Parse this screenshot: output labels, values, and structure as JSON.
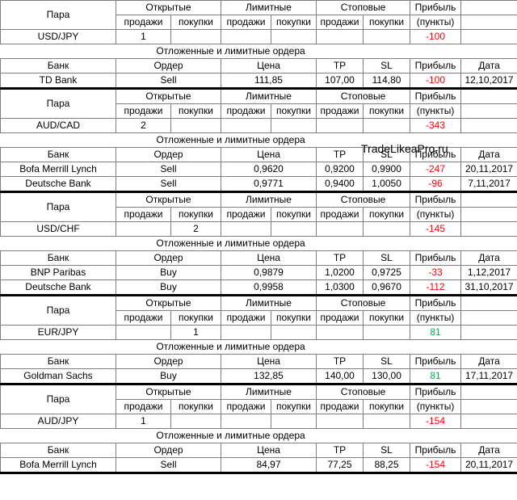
{
  "headers": {
    "pair": "Пара",
    "open": "Открытые",
    "limit": "Лимитные",
    "stop": "Стоповые",
    "profit": "Прибыль",
    "sell": "продажи",
    "buy": "покупки",
    "points": "(пункты)",
    "pending": "Отложенные и лимитные ордера",
    "bank": "Банк",
    "order": "Ордер",
    "price": "Цена",
    "tp": "TP",
    "sl": "SL",
    "date": "Дата"
  },
  "watermark": "TradeLikeaPro.ru",
  "blocks": [
    {
      "pair": "USD/JPY",
      "open_sell": 1,
      "open_buy": null,
      "profit": -100,
      "profit_color": "#ff0000",
      "orders": [
        {
          "bank": "TD Bank",
          "order": "Sell",
          "price": "111,85",
          "tp": "107,00",
          "sl": "114,80",
          "profit": -100,
          "profit_color": "#ff0000",
          "date": "12,10,2017"
        }
      ]
    },
    {
      "pair": "AUD/CAD",
      "open_sell": 2,
      "open_buy": null,
      "profit": -343,
      "profit_color": "#ff0000",
      "orders": [
        {
          "bank": "Bofa Merrill Lynch",
          "order": "Sell",
          "price": "0,9620",
          "tp": "0,9200",
          "sl": "0,9900",
          "profit": -247,
          "profit_color": "#ff0000",
          "date": "20,11,2017"
        },
        {
          "bank": "Deutsche Bank",
          "order": "Sell",
          "price": "0,9771",
          "tp": "0,9400",
          "sl": "1,0050",
          "profit": -96,
          "profit_color": "#ff0000",
          "date": "7,11,2017"
        }
      ]
    },
    {
      "pair": "USD/CHF",
      "open_sell": null,
      "open_buy": 2,
      "profit": -145,
      "profit_color": "#ff0000",
      "orders": [
        {
          "bank": "BNP Paribas",
          "order": "Buy",
          "price": "0,9879",
          "tp": "1,0200",
          "sl": "0,9725",
          "profit": -33,
          "profit_color": "#ff0000",
          "date": "1,12,2017"
        },
        {
          "bank": "Deutsche Bank",
          "order": "Buy",
          "price": "0,9958",
          "tp": "1,0300",
          "sl": "0,9670",
          "profit": -112,
          "profit_color": "#ff0000",
          "date": "31,10,2017"
        }
      ]
    },
    {
      "pair": "EUR/JPY",
      "open_sell": null,
      "open_buy": 1,
      "profit": 81,
      "profit_color": "#00b050",
      "orders": [
        {
          "bank": "Goldman Sachs",
          "order": "Buy",
          "price": "132,85",
          "tp": "140,00",
          "sl": "130,00",
          "profit": 81,
          "profit_color": "#00b050",
          "date": "17,11,2017"
        }
      ]
    },
    {
      "pair": "AUD/JPY",
      "open_sell": 1,
      "open_buy": null,
      "profit": -154,
      "profit_color": "#ff0000",
      "orders": [
        {
          "bank": "Bofa Merrill Lynch",
          "order": "Sell",
          "price": "84,97",
          "tp": "77,25",
          "sl": "88,25",
          "profit": -154,
          "profit_color": "#ff0000",
          "date": "20,11,2017"
        }
      ]
    }
  ]
}
